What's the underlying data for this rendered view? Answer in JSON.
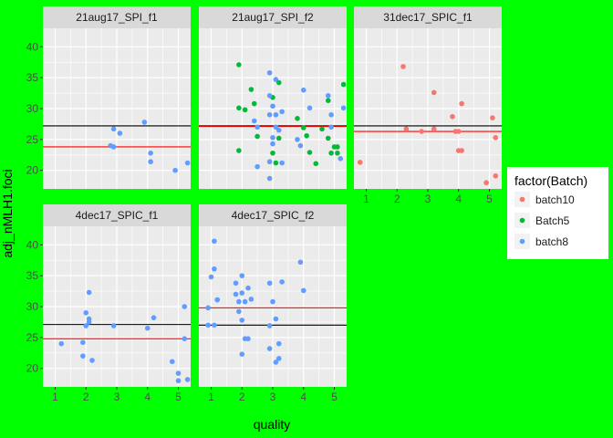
{
  "chart_data": {
    "type": "scatter",
    "xlabel": "quality",
    "ylabel": "adj_nMLH1.foci",
    "x_ticks": [
      1,
      2,
      3,
      4,
      5
    ],
    "y_ticks": [
      20,
      25,
      30,
      35,
      40
    ],
    "x_tick_labels": [
      "1",
      "2",
      "3",
      "4",
      "5"
    ],
    "y_tick_labels": [
      "20",
      "25",
      "30",
      "35",
      "40"
    ],
    "xlim": [
      0.6,
      5.4
    ],
    "ylim": [
      17,
      43
    ],
    "grid": true,
    "legend": {
      "title": "factor(Batch)",
      "position": "right",
      "entries": [
        {
          "label": "batch10",
          "color": "#F8766D"
        },
        {
          "label": "Batch5",
          "color": "#00BA38"
        },
        {
          "label": "batch8",
          "color": "#619CFF"
        }
      ]
    },
    "colors": {
      "background": "#00FF00",
      "panel": "#EBEBEB",
      "strip": "#D9D9D9",
      "hline_black": "#000000",
      "hline_red": "#FF0000"
    },
    "panels": [
      {
        "name": "21aug17_SPI_f1",
        "hline_black": 27.2,
        "hline_red": 23.8,
        "points": [
          {
            "x": 2.9,
            "y": 26.7,
            "batch": "batch8"
          },
          {
            "x": 3.1,
            "y": 26.0,
            "batch": "batch8"
          },
          {
            "x": 2.8,
            "y": 24.0,
            "batch": "batch8"
          },
          {
            "x": 2.9,
            "y": 23.8,
            "batch": "batch8"
          },
          {
            "x": 3.9,
            "y": 27.8,
            "batch": "batch8"
          },
          {
            "x": 4.1,
            "y": 22.8,
            "batch": "batch8"
          },
          {
            "x": 4.1,
            "y": 21.4,
            "batch": "batch8"
          },
          {
            "x": 4.9,
            "y": 20.0,
            "batch": "batch8"
          },
          {
            "x": 5.3,
            "y": 21.2,
            "batch": "batch8"
          }
        ]
      },
      {
        "name": "21aug17_SPI_f2",
        "hline_black": 27.2,
        "hline_red": 27.1,
        "points": [
          {
            "x": 1.9,
            "y": 37.1,
            "batch": "Batch5"
          },
          {
            "x": 1.9,
            "y": 30.1,
            "batch": "Batch5"
          },
          {
            "x": 2.1,
            "y": 29.8,
            "batch": "Batch5"
          },
          {
            "x": 2.3,
            "y": 33.1,
            "batch": "Batch5"
          },
          {
            "x": 2.4,
            "y": 30.8,
            "batch": "Batch5"
          },
          {
            "x": 2.5,
            "y": 25.5,
            "batch": "Batch5"
          },
          {
            "x": 1.9,
            "y": 23.2,
            "batch": "Batch5"
          },
          {
            "x": 3.0,
            "y": 31.8,
            "batch": "Batch5"
          },
          {
            "x": 3.2,
            "y": 34.2,
            "batch": "Batch5"
          },
          {
            "x": 3.2,
            "y": 25.2,
            "batch": "Batch5"
          },
          {
            "x": 3.0,
            "y": 22.8,
            "batch": "Batch5"
          },
          {
            "x": 3.1,
            "y": 21.2,
            "batch": "Batch5"
          },
          {
            "x": 3.8,
            "y": 28.4,
            "batch": "Batch5"
          },
          {
            "x": 4.0,
            "y": 26.9,
            "batch": "Batch5"
          },
          {
            "x": 4.1,
            "y": 25.6,
            "batch": "Batch5"
          },
          {
            "x": 4.2,
            "y": 22.9,
            "batch": "Batch5"
          },
          {
            "x": 4.4,
            "y": 21.1,
            "batch": "Batch5"
          },
          {
            "x": 4.6,
            "y": 26.7,
            "batch": "Batch5"
          },
          {
            "x": 4.8,
            "y": 31.3,
            "batch": "Batch5"
          },
          {
            "x": 4.8,
            "y": 25.2,
            "batch": "Batch5"
          },
          {
            "x": 4.9,
            "y": 22.8,
            "batch": "Batch5"
          },
          {
            "x": 5.0,
            "y": 23.8,
            "batch": "Batch5"
          },
          {
            "x": 5.1,
            "y": 23.8,
            "batch": "Batch5"
          },
          {
            "x": 5.1,
            "y": 22.8,
            "batch": "Batch5"
          },
          {
            "x": 5.3,
            "y": 33.9,
            "batch": "Batch5"
          },
          {
            "x": 2.5,
            "y": 27.0,
            "batch": "batch8"
          },
          {
            "x": 2.4,
            "y": 28.0,
            "batch": "batch8"
          },
          {
            "x": 2.5,
            "y": 20.6,
            "batch": "batch8"
          },
          {
            "x": 2.9,
            "y": 35.8,
            "batch": "batch8"
          },
          {
            "x": 3.1,
            "y": 34.7,
            "batch": "batch8"
          },
          {
            "x": 2.9,
            "y": 32.1,
            "batch": "batch8"
          },
          {
            "x": 3.0,
            "y": 30.4,
            "batch": "batch8"
          },
          {
            "x": 2.9,
            "y": 29.0,
            "batch": "batch8"
          },
          {
            "x": 3.1,
            "y": 29.0,
            "batch": "batch8"
          },
          {
            "x": 3.1,
            "y": 27.0,
            "batch": "batch8"
          },
          {
            "x": 3.2,
            "y": 26.5,
            "batch": "batch8"
          },
          {
            "x": 3.0,
            "y": 25.3,
            "batch": "batch8"
          },
          {
            "x": 3.0,
            "y": 24.3,
            "batch": "batch8"
          },
          {
            "x": 2.9,
            "y": 21.4,
            "batch": "batch8"
          },
          {
            "x": 2.9,
            "y": 18.7,
            "batch": "batch8"
          },
          {
            "x": 3.3,
            "y": 21.2,
            "batch": "batch8"
          },
          {
            "x": 3.3,
            "y": 29.5,
            "batch": "batch8"
          },
          {
            "x": 3.8,
            "y": 25.0,
            "batch": "batch8"
          },
          {
            "x": 3.9,
            "y": 24.0,
            "batch": "batch8"
          },
          {
            "x": 4.0,
            "y": 33.0,
            "batch": "batch8"
          },
          {
            "x": 4.2,
            "y": 30.1,
            "batch": "batch8"
          },
          {
            "x": 4.8,
            "y": 32.1,
            "batch": "batch8"
          },
          {
            "x": 4.9,
            "y": 29.0,
            "batch": "batch8"
          },
          {
            "x": 4.9,
            "y": 27.0,
            "batch": "batch8"
          },
          {
            "x": 5.2,
            "y": 21.9,
            "batch": "batch8"
          },
          {
            "x": 5.3,
            "y": 30.1,
            "batch": "batch8"
          }
        ]
      },
      {
        "name": "31dec17_SPIC_f1",
        "hline_black": 27.2,
        "hline_red": 26.3,
        "points": [
          {
            "x": 0.8,
            "y": 21.3,
            "batch": "batch10"
          },
          {
            "x": 2.2,
            "y": 36.8,
            "batch": "batch10"
          },
          {
            "x": 2.3,
            "y": 26.7,
            "batch": "batch10"
          },
          {
            "x": 2.8,
            "y": 26.3,
            "batch": "batch10"
          },
          {
            "x": 3.2,
            "y": 32.6,
            "batch": "batch10"
          },
          {
            "x": 3.2,
            "y": 26.7,
            "batch": "batch10"
          },
          {
            "x": 3.8,
            "y": 28.7,
            "batch": "batch10"
          },
          {
            "x": 3.9,
            "y": 26.3,
            "batch": "batch10"
          },
          {
            "x": 4.0,
            "y": 26.3,
            "batch": "batch10"
          },
          {
            "x": 4.0,
            "y": 23.2,
            "batch": "batch10"
          },
          {
            "x": 4.1,
            "y": 23.2,
            "batch": "batch10"
          },
          {
            "x": 4.1,
            "y": 30.8,
            "batch": "batch10"
          },
          {
            "x": 4.9,
            "y": 18.0,
            "batch": "batch10"
          },
          {
            "x": 5.1,
            "y": 28.5,
            "batch": "batch10"
          },
          {
            "x": 5.2,
            "y": 25.3,
            "batch": "batch10"
          },
          {
            "x": 5.2,
            "y": 19.1,
            "batch": "batch10"
          }
        ]
      },
      {
        "name": "4dec17_SPIC_f1",
        "hline_black": 27.1,
        "hline_red": 24.8,
        "points": [
          {
            "x": 1.2,
            "y": 24.0,
            "batch": "batch8"
          },
          {
            "x": 1.9,
            "y": 24.2,
            "batch": "batch8"
          },
          {
            "x": 1.9,
            "y": 22.0,
            "batch": "batch8"
          },
          {
            "x": 2.0,
            "y": 26.9,
            "batch": "batch8"
          },
          {
            "x": 2.0,
            "y": 29.0,
            "batch": "batch8"
          },
          {
            "x": 2.1,
            "y": 28.0,
            "batch": "batch8"
          },
          {
            "x": 2.1,
            "y": 27.5,
            "batch": "batch8"
          },
          {
            "x": 2.1,
            "y": 32.3,
            "batch": "batch8"
          },
          {
            "x": 2.2,
            "y": 21.3,
            "batch": "batch8"
          },
          {
            "x": 2.9,
            "y": 26.9,
            "batch": "batch8"
          },
          {
            "x": 4.0,
            "y": 26.5,
            "batch": "batch8"
          },
          {
            "x": 4.2,
            "y": 28.2,
            "batch": "batch8"
          },
          {
            "x": 4.8,
            "y": 21.1,
            "batch": "batch8"
          },
          {
            "x": 5.0,
            "y": 19.2,
            "batch": "batch8"
          },
          {
            "x": 5.0,
            "y": 18.0,
            "batch": "batch8"
          },
          {
            "x": 5.2,
            "y": 30.0,
            "batch": "batch8"
          },
          {
            "x": 5.2,
            "y": 24.8,
            "batch": "batch8"
          },
          {
            "x": 5.3,
            "y": 18.2,
            "batch": "batch8"
          }
        ]
      },
      {
        "name": "4dec17_SPIC_f2",
        "hline_black": 27.0,
        "hline_red": 29.8,
        "points": [
          {
            "x": 1.1,
            "y": 40.6,
            "batch": "batch8"
          },
          {
            "x": 1.0,
            "y": 34.8,
            "batch": "batch8"
          },
          {
            "x": 1.1,
            "y": 36.1,
            "batch": "batch8"
          },
          {
            "x": 1.2,
            "y": 31.1,
            "batch": "batch8"
          },
          {
            "x": 1.2,
            "y": 31.1,
            "batch": "batch8"
          },
          {
            "x": 0.9,
            "y": 29.8,
            "batch": "batch8"
          },
          {
            "x": 0.9,
            "y": 27.0,
            "batch": "batch8"
          },
          {
            "x": 1.1,
            "y": 27.0,
            "batch": "batch8"
          },
          {
            "x": 1.8,
            "y": 33.8,
            "batch": "batch8"
          },
          {
            "x": 1.8,
            "y": 32.0,
            "batch": "batch8"
          },
          {
            "x": 1.9,
            "y": 30.8,
            "batch": "batch8"
          },
          {
            "x": 1.9,
            "y": 29.2,
            "batch": "batch8"
          },
          {
            "x": 2.0,
            "y": 35.0,
            "batch": "batch8"
          },
          {
            "x": 2.0,
            "y": 32.2,
            "batch": "batch8"
          },
          {
            "x": 2.1,
            "y": 30.8,
            "batch": "batch8"
          },
          {
            "x": 2.0,
            "y": 27.8,
            "batch": "batch8"
          },
          {
            "x": 2.0,
            "y": 22.3,
            "batch": "batch8"
          },
          {
            "x": 2.1,
            "y": 24.8,
            "batch": "batch8"
          },
          {
            "x": 2.2,
            "y": 33.0,
            "batch": "batch8"
          },
          {
            "x": 2.3,
            "y": 31.2,
            "batch": "batch8"
          },
          {
            "x": 2.2,
            "y": 24.8,
            "batch": "batch8"
          },
          {
            "x": 2.9,
            "y": 33.8,
            "batch": "batch8"
          },
          {
            "x": 2.9,
            "y": 26.9,
            "batch": "batch8"
          },
          {
            "x": 2.9,
            "y": 23.2,
            "batch": "batch8"
          },
          {
            "x": 3.0,
            "y": 30.8,
            "batch": "batch8"
          },
          {
            "x": 3.1,
            "y": 28.0,
            "batch": "batch8"
          },
          {
            "x": 3.1,
            "y": 21.0,
            "batch": "batch8"
          },
          {
            "x": 3.2,
            "y": 24.0,
            "batch": "batch8"
          },
          {
            "x": 3.2,
            "y": 21.6,
            "batch": "batch8"
          },
          {
            "x": 3.3,
            "y": 34.0,
            "batch": "batch8"
          },
          {
            "x": 3.9,
            "y": 37.2,
            "batch": "batch8"
          },
          {
            "x": 4.0,
            "y": 32.6,
            "batch": "batch8"
          }
        ]
      }
    ]
  }
}
